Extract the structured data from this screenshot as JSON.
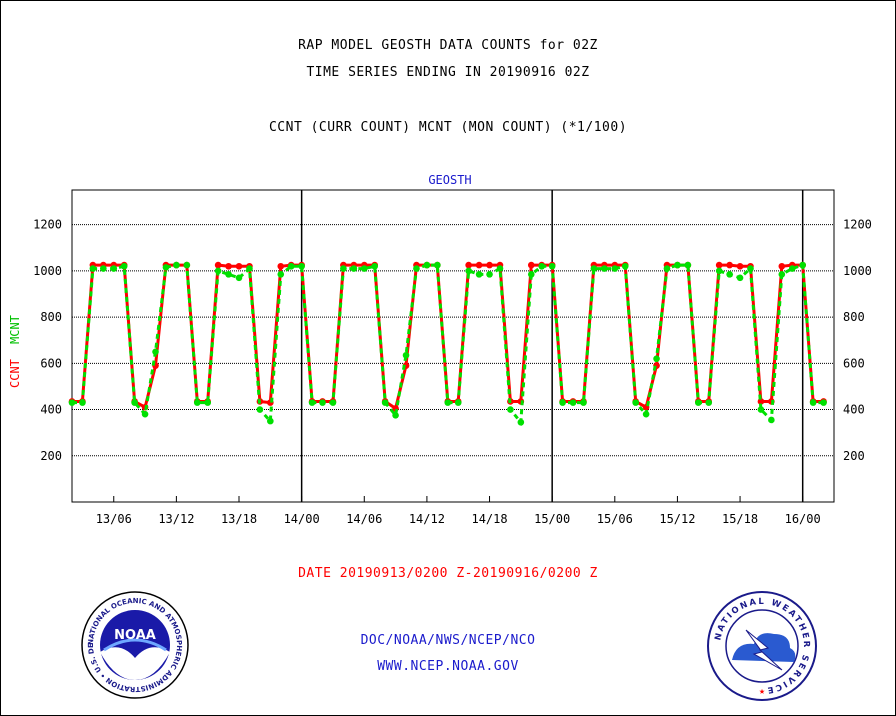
{
  "titles": {
    "line1": "RAP MODEL GEOSTH DATA COUNTS for 02Z",
    "line2": "TIME SERIES ENDING IN 20190916 02Z",
    "line3": "CCNT (CURR COUNT) MCNT (MON COUNT) (*1/100)"
  },
  "footer": {
    "date_range": "DATE 20190913/0200 Z-20190916/0200 Z",
    "credit_org": "DOC/NOAA/NWS/NCEP/NCO",
    "credit_url": "WWW.NCEP.NOAA.GOV"
  },
  "logos": {
    "noaa_text": "NOAA",
    "noaa_ring": "NATIONAL OCEANIC AND ATMOSPHERIC ADMINISTRATION • U.S. DEPARTMENT OF COMMERCE •",
    "nws_ring": "NATIONAL WEATHER SERVICE"
  },
  "colors": {
    "ccnt": "#ff0000",
    "mcnt": "#00e000",
    "panel_title": "#1a1acc",
    "date_range": "#ff0000",
    "credits": "#1a1acc"
  },
  "chart_data": {
    "type": "line",
    "panel_title": "GEOSTH",
    "ylabel_ccnt": "CCNT",
    "ylabel_mcnt": "MCNT",
    "ylim": [
      0,
      1350
    ],
    "yticks": [
      200,
      400,
      600,
      800,
      1000,
      1200
    ],
    "grid": true,
    "x_unit": "hours since 2019-09-13 02Z",
    "xlim": [
      0,
      73
    ],
    "xticks": [
      {
        "t": 4,
        "label": "13/06"
      },
      {
        "t": 10,
        "label": "13/12"
      },
      {
        "t": 16,
        "label": "13/18"
      },
      {
        "t": 22,
        "label": "14/00"
      },
      {
        "t": 28,
        "label": "14/06"
      },
      {
        "t": 34,
        "label": "14/12"
      },
      {
        "t": 40,
        "label": "14/18"
      },
      {
        "t": 46,
        "label": "15/00"
      },
      {
        "t": 52,
        "label": "15/06"
      },
      {
        "t": 58,
        "label": "15/12"
      },
      {
        "t": 64,
        "label": "15/18"
      },
      {
        "t": 70,
        "label": "16/00"
      }
    ],
    "day_boundaries": [
      22,
      46,
      70
    ],
    "x": [
      0,
      1,
      2,
      3,
      4,
      5,
      6,
      7,
      8,
      9,
      10,
      11,
      12,
      13,
      14,
      15,
      16,
      17,
      18,
      19,
      20,
      21,
      22,
      23,
      24,
      25,
      26,
      27,
      28,
      29,
      30,
      31,
      32,
      33,
      34,
      35,
      36,
      37,
      38,
      39,
      40,
      41,
      42,
      43,
      44,
      45,
      46,
      47,
      48,
      49,
      50,
      51,
      52,
      53,
      54,
      55,
      56,
      57,
      58,
      59,
      60,
      61,
      62,
      63,
      64,
      65,
      66,
      67,
      68,
      69,
      70,
      71,
      72
    ],
    "series": [
      {
        "name": "CCNT",
        "values": [
          435,
          435,
          1025,
          1025,
          1025,
          1025,
          435,
          410,
          590,
          1025,
          1025,
          1025,
          435,
          435,
          1025,
          1020,
          1020,
          1020,
          435,
          430,
          1020,
          1025,
          1025,
          435,
          435,
          435,
          1025,
          1025,
          1025,
          1025,
          435,
          405,
          590,
          1025,
          1025,
          1025,
          435,
          435,
          1025,
          1025,
          1025,
          1025,
          435,
          435,
          1025,
          1025,
          1025,
          435,
          435,
          435,
          1025,
          1025,
          1025,
          1025,
          435,
          410,
          590,
          1025,
          1025,
          1025,
          435,
          435,
          1025,
          1025,
          1020,
          1020,
          435,
          435,
          1020,
          1025,
          1025,
          435,
          435
        ]
      },
      {
        "name": "MCNT",
        "values": [
          430,
          430,
          1010,
          1010,
          1010,
          1020,
          430,
          380,
          650,
          1015,
          1025,
          1025,
          430,
          430,
          1000,
          985,
          970,
          1010,
          400,
          350,
          985,
          1020,
          1020,
          430,
          430,
          430,
          1010,
          1010,
          1010,
          1020,
          430,
          375,
          635,
          1010,
          1025,
          1025,
          430,
          430,
          1000,
          985,
          985,
          1010,
          400,
          345,
          985,
          1020,
          1020,
          430,
          430,
          430,
          1010,
          1010,
          1010,
          1020,
          430,
          380,
          620,
          1010,
          1025,
          1025,
          430,
          430,
          1000,
          985,
          970,
          1010,
          400,
          355,
          985,
          1010,
          1025,
          430,
          430
        ]
      }
    ]
  }
}
